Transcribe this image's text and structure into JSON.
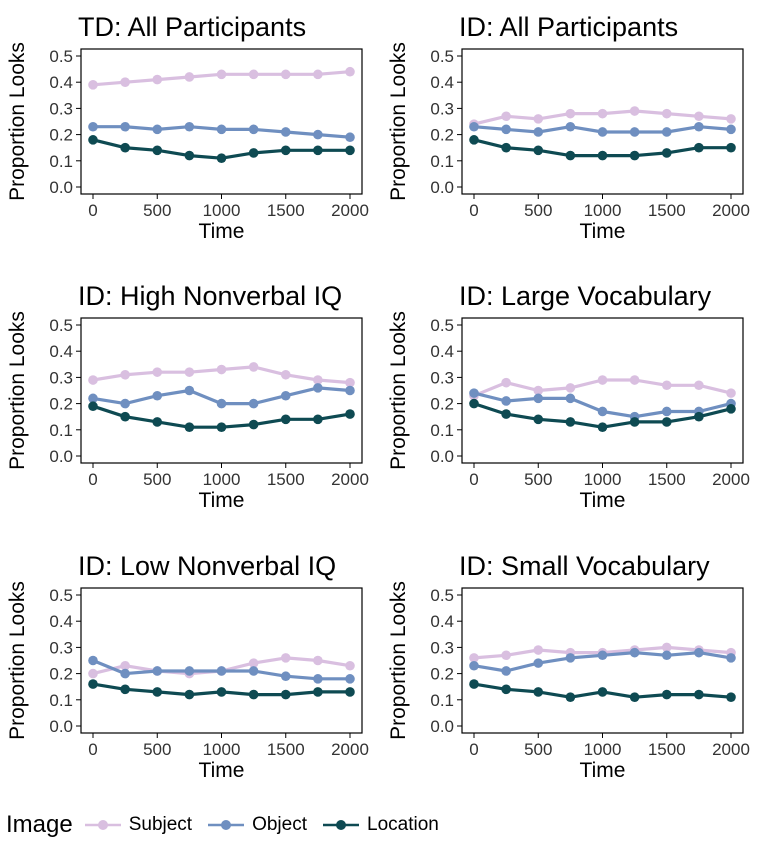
{
  "legend": {
    "title": "Image",
    "items": [
      {
        "label": "Subject",
        "color": "#d9bfe0"
      },
      {
        "label": "Object",
        "color": "#6f8fc0"
      },
      {
        "label": "Location",
        "color": "#0e4a52"
      }
    ]
  },
  "chart_data": [
    {
      "type": "line",
      "title": "TD: All Participants",
      "xlabel": "Time",
      "ylabel": "Proportion Looks",
      "xlim": [
        0,
        2000
      ],
      "ylim": [
        0,
        0.5
      ],
      "xticks": [
        "0",
        "500",
        "1000",
        "1500",
        "2000"
      ],
      "yticks": [
        "0.0",
        "0.1",
        "0.2",
        "0.3",
        "0.4",
        "0.5"
      ],
      "x": [
        0,
        250,
        500,
        750,
        1000,
        1250,
        1500,
        1750,
        2000
      ],
      "series": [
        {
          "name": "Subject",
          "values": [
            0.39,
            0.4,
            0.41,
            0.42,
            0.43,
            0.43,
            0.43,
            0.43,
            0.44
          ]
        },
        {
          "name": "Object",
          "values": [
            0.23,
            0.23,
            0.22,
            0.23,
            0.22,
            0.22,
            0.21,
            0.2,
            0.19
          ]
        },
        {
          "name": "Location",
          "values": [
            0.18,
            0.15,
            0.14,
            0.12,
            0.11,
            0.13,
            0.14,
            0.14,
            0.14
          ]
        }
      ]
    },
    {
      "type": "line",
      "title": "ID: All Participants",
      "xlabel": "Time",
      "ylabel": "Proportion Looks",
      "xlim": [
        0,
        2000
      ],
      "ylim": [
        0,
        0.5
      ],
      "xticks": [
        "0",
        "500",
        "1000",
        "1500",
        "2000"
      ],
      "yticks": [
        "0.0",
        "0.1",
        "0.2",
        "0.3",
        "0.4",
        "0.5"
      ],
      "x": [
        0,
        250,
        500,
        750,
        1000,
        1250,
        1500,
        1750,
        2000
      ],
      "series": [
        {
          "name": "Subject",
          "values": [
            0.24,
            0.27,
            0.26,
            0.28,
            0.28,
            0.29,
            0.28,
            0.27,
            0.26
          ]
        },
        {
          "name": "Object",
          "values": [
            0.23,
            0.22,
            0.21,
            0.23,
            0.21,
            0.21,
            0.21,
            0.23,
            0.22
          ]
        },
        {
          "name": "Location",
          "values": [
            0.18,
            0.15,
            0.14,
            0.12,
            0.12,
            0.12,
            0.13,
            0.15,
            0.15
          ]
        }
      ]
    },
    {
      "type": "line",
      "title": "ID: High Nonverbal IQ",
      "xlabel": "Time",
      "ylabel": "Proportion Looks",
      "xlim": [
        0,
        2000
      ],
      "ylim": [
        0,
        0.5
      ],
      "xticks": [
        "0",
        "500",
        "1000",
        "1500",
        "2000"
      ],
      "yticks": [
        "0.0",
        "0.1",
        "0.2",
        "0.3",
        "0.4",
        "0.5"
      ],
      "x": [
        0,
        250,
        500,
        750,
        1000,
        1250,
        1500,
        1750,
        2000
      ],
      "series": [
        {
          "name": "Subject",
          "values": [
            0.29,
            0.31,
            0.32,
            0.32,
            0.33,
            0.34,
            0.31,
            0.29,
            0.28
          ]
        },
        {
          "name": "Object",
          "values": [
            0.22,
            0.2,
            0.23,
            0.25,
            0.2,
            0.2,
            0.23,
            0.26,
            0.25
          ]
        },
        {
          "name": "Location",
          "values": [
            0.19,
            0.15,
            0.13,
            0.11,
            0.11,
            0.12,
            0.14,
            0.14,
            0.16
          ]
        }
      ]
    },
    {
      "type": "line",
      "title": "ID: Large Vocabulary",
      "xlabel": "Time",
      "ylabel": "Proportion Looks",
      "xlim": [
        0,
        2000
      ],
      "ylim": [
        0,
        0.5
      ],
      "xticks": [
        "0",
        "500",
        "1000",
        "1500",
        "2000"
      ],
      "yticks": [
        "0.0",
        "0.1",
        "0.2",
        "0.3",
        "0.4",
        "0.5"
      ],
      "x": [
        0,
        250,
        500,
        750,
        1000,
        1250,
        1500,
        1750,
        2000
      ],
      "series": [
        {
          "name": "Subject",
          "values": [
            0.23,
            0.28,
            0.25,
            0.26,
            0.29,
            0.29,
            0.27,
            0.27,
            0.24
          ]
        },
        {
          "name": "Object",
          "values": [
            0.24,
            0.21,
            0.22,
            0.22,
            0.17,
            0.15,
            0.17,
            0.17,
            0.2
          ]
        },
        {
          "name": "Location",
          "values": [
            0.2,
            0.16,
            0.14,
            0.13,
            0.11,
            0.13,
            0.13,
            0.15,
            0.18
          ]
        }
      ]
    },
    {
      "type": "line",
      "title": "ID: Low Nonverbal IQ",
      "xlabel": "Time",
      "ylabel": "Proportion Looks",
      "xlim": [
        0,
        2000
      ],
      "ylim": [
        0,
        0.5
      ],
      "xticks": [
        "0",
        "500",
        "1000",
        "1500",
        "2000"
      ],
      "yticks": [
        "0.0",
        "0.1",
        "0.2",
        "0.3",
        "0.4",
        "0.5"
      ],
      "x": [
        0,
        250,
        500,
        750,
        1000,
        1250,
        1500,
        1750,
        2000
      ],
      "series": [
        {
          "name": "Subject",
          "values": [
            0.2,
            0.23,
            0.21,
            0.2,
            0.21,
            0.24,
            0.26,
            0.25,
            0.23
          ]
        },
        {
          "name": "Object",
          "values": [
            0.25,
            0.2,
            0.21,
            0.21,
            0.21,
            0.21,
            0.19,
            0.18,
            0.18
          ]
        },
        {
          "name": "Location",
          "values": [
            0.16,
            0.14,
            0.13,
            0.12,
            0.13,
            0.12,
            0.12,
            0.13,
            0.13
          ]
        }
      ]
    },
    {
      "type": "line",
      "title": "ID: Small Vocabulary",
      "xlabel": "Time",
      "ylabel": "Proportion Looks",
      "xlim": [
        0,
        2000
      ],
      "ylim": [
        0,
        0.5
      ],
      "xticks": [
        "0",
        "500",
        "1000",
        "1500",
        "2000"
      ],
      "yticks": [
        "0.0",
        "0.1",
        "0.2",
        "0.3",
        "0.4",
        "0.5"
      ],
      "x": [
        0,
        250,
        500,
        750,
        1000,
        1250,
        1500,
        1750,
        2000
      ],
      "series": [
        {
          "name": "Subject",
          "values": [
            0.26,
            0.27,
            0.29,
            0.28,
            0.28,
            0.29,
            0.3,
            0.29,
            0.28
          ]
        },
        {
          "name": "Object",
          "values": [
            0.23,
            0.21,
            0.24,
            0.26,
            0.27,
            0.28,
            0.27,
            0.28,
            0.26
          ]
        },
        {
          "name": "Location",
          "values": [
            0.16,
            0.14,
            0.13,
            0.11,
            0.13,
            0.11,
            0.12,
            0.12,
            0.11
          ]
        }
      ]
    }
  ]
}
